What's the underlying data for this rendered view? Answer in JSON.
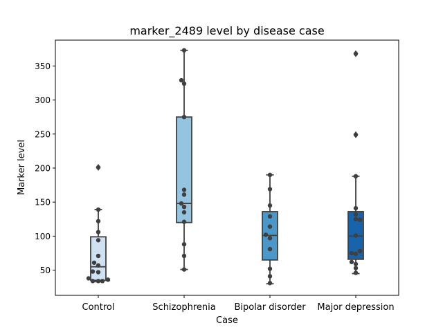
{
  "chart_data": {
    "type": "box",
    "title": "marker_2489 level by disease case",
    "xlabel": "Case",
    "ylabel": "Marker level",
    "categories": [
      "Control",
      "Schizophrenia",
      "Bipolar disorder",
      "Major depression"
    ],
    "ylim": [
      13,
      388
    ],
    "yticks": [
      50,
      100,
      150,
      200,
      250,
      300,
      350
    ],
    "grid": false,
    "colors": [
      "#d0e1f2",
      "#94c4df",
      "#4a98c9",
      "#1764ab"
    ],
    "boxes": [
      {
        "q1": 35,
        "median": 55,
        "q3": 99,
        "whisker_low": 33,
        "whisker_high": 139,
        "outliers": [
          201
        ]
      },
      {
        "q1": 120,
        "median": 148,
        "q3": 275,
        "whisker_low": 51,
        "whisker_high": 373,
        "outliers": []
      },
      {
        "q1": 65,
        "median": 101,
        "q3": 136,
        "whisker_low": 30,
        "whisker_high": 190,
        "outliers": []
      },
      {
        "q1": 66,
        "median": 100,
        "q3": 136,
        "whisker_low": 45,
        "whisker_high": 188,
        "outliers": [
          249,
          368
        ]
      }
    ],
    "points": [
      [
        {
          "y": 201,
          "dx": 0
        },
        {
          "y": 139,
          "dx": 0
        },
        {
          "y": 122,
          "dx": 0
        },
        {
          "y": 106,
          "dx": 0
        },
        {
          "y": 94,
          "dx": 0
        },
        {
          "y": 71,
          "dx": 0
        },
        {
          "y": 61,
          "dx": -6
        },
        {
          "y": 57,
          "dx": 0
        },
        {
          "y": 48,
          "dx": -8
        },
        {
          "y": 47,
          "dx": 0
        },
        {
          "y": 38,
          "dx": -14
        },
        {
          "y": 36,
          "dx": 14
        },
        {
          "y": 34,
          "dx": -8
        },
        {
          "y": 34,
          "dx": 0
        },
        {
          "y": 34,
          "dx": 6
        }
      ],
      [
        {
          "y": 373,
          "dx": 0
        },
        {
          "y": 329,
          "dx": -4
        },
        {
          "y": 324,
          "dx": 0
        },
        {
          "y": 275,
          "dx": 0
        },
        {
          "y": 168,
          "dx": 0
        },
        {
          "y": 161,
          "dx": 0
        },
        {
          "y": 148,
          "dx": -4
        },
        {
          "y": 143,
          "dx": 0
        },
        {
          "y": 135,
          "dx": 0
        },
        {
          "y": 121,
          "dx": 0
        },
        {
          "y": 88,
          "dx": 0
        },
        {
          "y": 71,
          "dx": 0
        },
        {
          "y": 51,
          "dx": 0
        }
      ],
      [
        {
          "y": 190,
          "dx": 0
        },
        {
          "y": 169,
          "dx": 0
        },
        {
          "y": 145,
          "dx": 0
        },
        {
          "y": 129,
          "dx": 0
        },
        {
          "y": 114,
          "dx": 0
        },
        {
          "y": 102,
          "dx": -6
        },
        {
          "y": 97,
          "dx": 0
        },
        {
          "y": 81,
          "dx": 0
        },
        {
          "y": 52,
          "dx": 0
        },
        {
          "y": 41,
          "dx": 0
        },
        {
          "y": 31,
          "dx": 0
        }
      ],
      [
        {
          "y": 368,
          "dx": 0
        },
        {
          "y": 249,
          "dx": 0
        },
        {
          "y": 188,
          "dx": 0
        },
        {
          "y": 141,
          "dx": 0
        },
        {
          "y": 132,
          "dx": 0
        },
        {
          "y": 125,
          "dx": 0
        },
        {
          "y": 124,
          "dx": 6
        },
        {
          "y": 101,
          "dx": 0
        },
        {
          "y": 78,
          "dx": 6
        },
        {
          "y": 75,
          "dx": -6
        },
        {
          "y": 74,
          "dx": 0
        },
        {
          "y": 62,
          "dx": -6
        },
        {
          "y": 59,
          "dx": 0
        },
        {
          "y": 53,
          "dx": 0
        },
        {
          "y": 46,
          "dx": 0
        }
      ]
    ]
  }
}
